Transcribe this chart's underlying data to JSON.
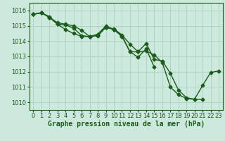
{
  "background_color": "#cde8dc",
  "grid_color": "#b0d4c4",
  "line_color": "#1a5c1a",
  "marker": "D",
  "marker_size": 2.5,
  "line_width": 1.0,
  "xlabel": "Graphe pression niveau de la mer (hPa)",
  "xlabel_fontsize": 7,
  "tick_fontsize": 6,
  "xlim": [
    -0.5,
    23.5
  ],
  "ylim": [
    1009.5,
    1016.5
  ],
  "yticks": [
    1010,
    1011,
    1012,
    1013,
    1014,
    1015,
    1016
  ],
  "xticks": [
    0,
    1,
    2,
    3,
    4,
    5,
    6,
    7,
    8,
    9,
    10,
    11,
    12,
    13,
    14,
    15,
    16,
    17,
    18,
    19,
    20,
    21,
    22,
    23
  ],
  "series": [
    [
      1015.75,
      1015.85,
      1015.6,
      1015.1,
      1014.75,
      1014.5,
      1014.3,
      1014.3,
      1014.4,
      1014.9,
      1014.8,
      1014.4,
      1013.8,
      1013.3,
      1013.85,
      1012.8,
      1012.7,
      1011.9,
      1010.8,
      1010.3,
      1010.2,
      1010.2,
      null,
      null
    ],
    [
      1015.75,
      1015.85,
      1015.55,
      1015.1,
      1015.05,
      1014.85,
      1014.35,
      1014.3,
      1014.35,
      1014.9,
      1014.75,
      1014.3,
      1013.3,
      1012.95,
      1013.5,
      1012.3,
      null,
      null,
      null,
      null,
      null,
      null,
      null,
      null
    ],
    [
      1015.75,
      1015.85,
      1015.55,
      1015.2,
      1015.1,
      1015.0,
      1014.7,
      1014.3,
      1014.45,
      1015.0,
      1014.75,
      1014.35,
      1013.3,
      1013.3,
      1013.35,
      1013.1,
      1012.6,
      1011.0,
      1010.5,
      1010.25,
      1010.2,
      1011.1,
      1011.95,
      1012.05
    ]
  ]
}
